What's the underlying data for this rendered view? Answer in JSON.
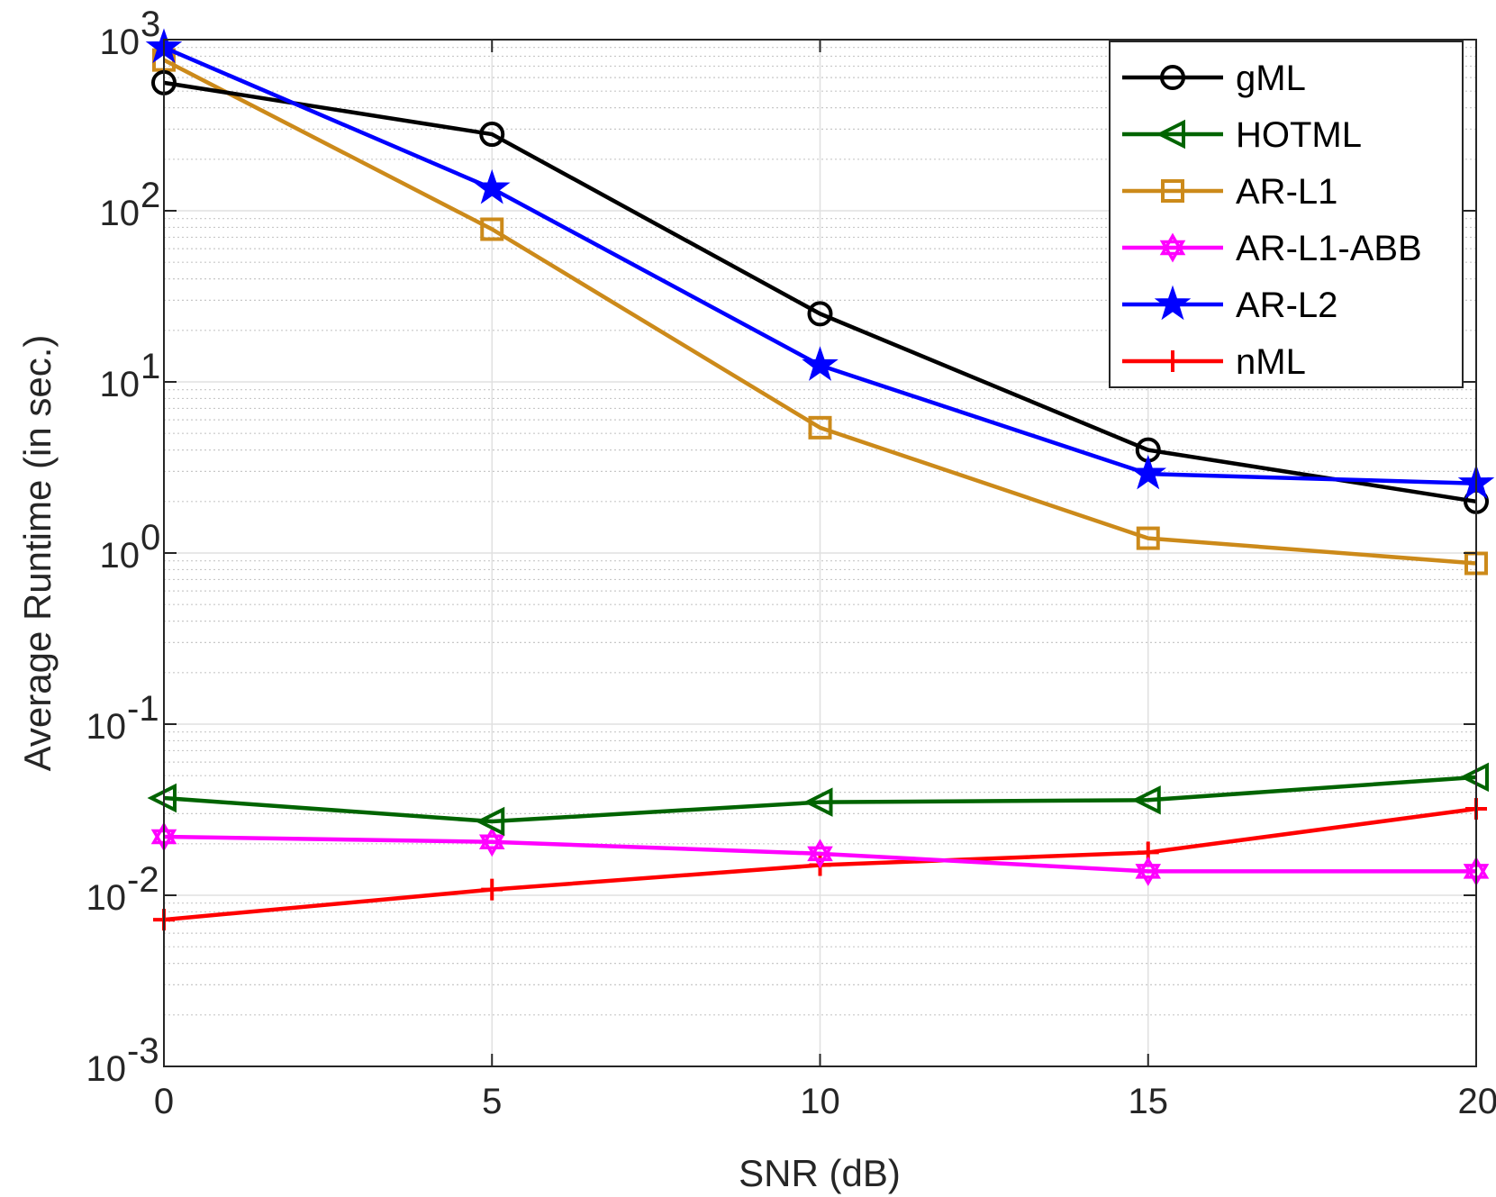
{
  "chart_data": {
    "type": "line",
    "title": "",
    "xlabel": "SNR (dB)",
    "ylabel": "Average Runtime (in sec.)",
    "xlim": [
      0,
      20
    ],
    "ylim": [
      0.001,
      1000
    ],
    "yscale": "log",
    "grid": true,
    "minor_grid": true,
    "legend_position": "top-right",
    "x": [
      0,
      5,
      10,
      15,
      20
    ],
    "x_tick_labels": [
      "0",
      "5",
      "10",
      "15",
      "20"
    ],
    "y_ticks": [
      {
        "value": 0.001,
        "base": "10",
        "exp": "-3"
      },
      {
        "value": 0.01,
        "base": "10",
        "exp": "-2"
      },
      {
        "value": 0.1,
        "base": "10",
        "exp": "-1"
      },
      {
        "value": 1,
        "base": "10",
        "exp": "0"
      },
      {
        "value": 10,
        "base": "10",
        "exp": "1"
      },
      {
        "value": 100,
        "base": "10",
        "exp": "2"
      },
      {
        "value": 1000,
        "base": "10",
        "exp": "3"
      }
    ],
    "series": [
      {
        "name": "gML",
        "color": "#000000",
        "marker": "circle",
        "values": [
          560,
          280,
          25,
          4,
          2
        ]
      },
      {
        "name": "HOTML",
        "color": "#006400",
        "marker": "triangle-left",
        "values": [
          0.037,
          0.027,
          0.035,
          0.036,
          0.049
        ]
      },
      {
        "name": "AR-L1",
        "color": "#CC8A1A",
        "marker": "square",
        "values": [
          760,
          78,
          5.4,
          1.22,
          0.87
        ]
      },
      {
        "name": "AR-L1-ABB",
        "color": "#FF00FF",
        "marker": "hexagram",
        "values": [
          0.022,
          0.0205,
          0.0175,
          0.0138,
          0.0138
        ]
      },
      {
        "name": "AR-L2",
        "color": "#0000FF",
        "marker": "pentagram",
        "values": [
          900,
          135,
          12.5,
          2.9,
          2.55
        ]
      },
      {
        "name": "nML",
        "color": "#FF0000",
        "marker": "plus",
        "values": [
          0.0072,
          0.0108,
          0.015,
          0.0178,
          0.032
        ]
      }
    ]
  }
}
